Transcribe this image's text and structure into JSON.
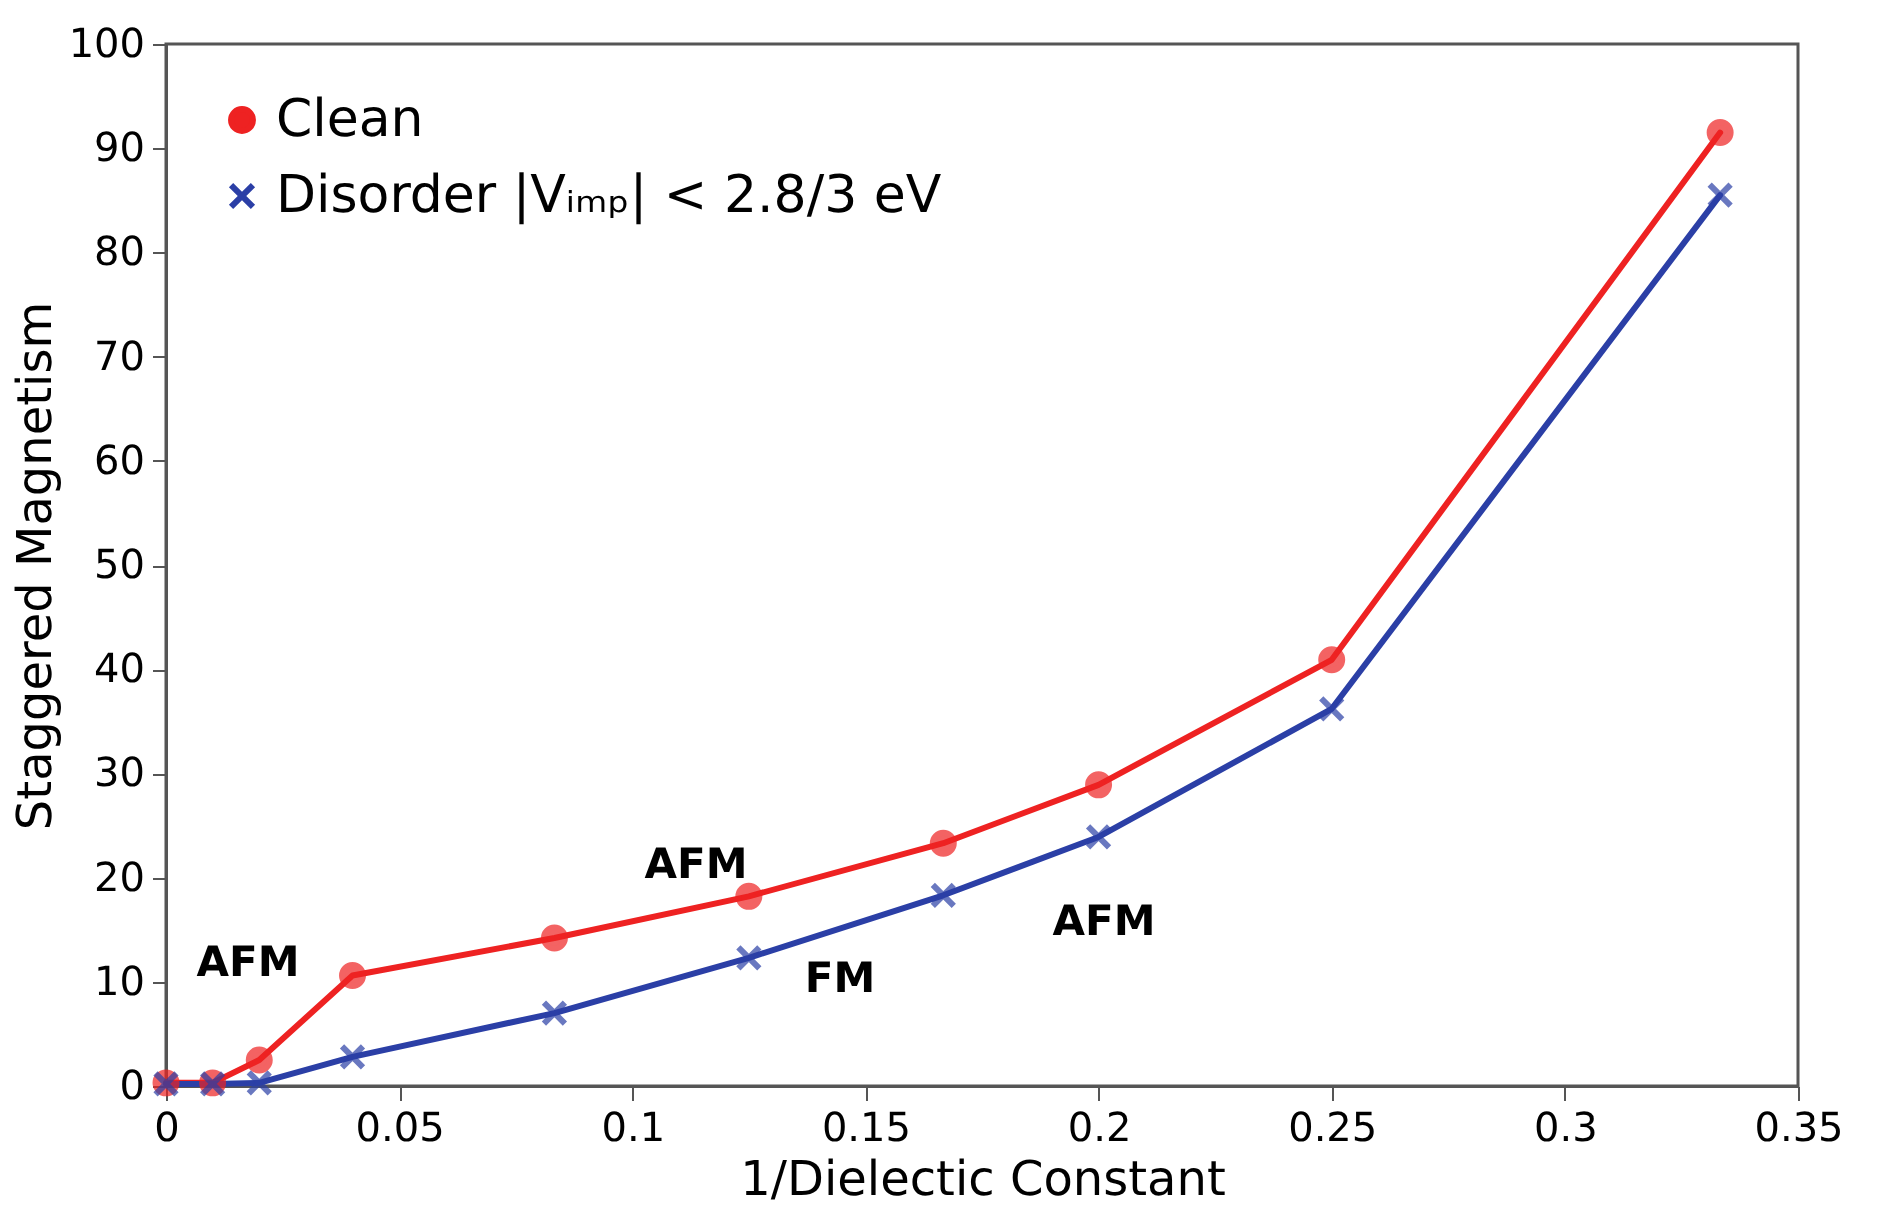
{
  "chart_data": {
    "type": "line",
    "xlabel": "1/Dielectic Constant",
    "ylabel": "Staggered Magnetism",
    "x": [
      0,
      0.01,
      0.02,
      0.04,
      0.0833,
      0.125,
      0.1667,
      0.2,
      0.25,
      0.3333
    ],
    "series": [
      {
        "name": "Clean",
        "color": "#ee2222",
        "marker": "circle",
        "values": [
          0.3,
          0.3,
          2.5,
          10.6,
          14.2,
          18.2,
          23.3,
          28.9,
          40.9,
          91.5
        ]
      },
      {
        "name": "Disorder |Vᵢₘₚ| < 2.8/3 eV",
        "color": "#2b3fa6",
        "marker": "cross",
        "values": [
          0.2,
          0.2,
          0.3,
          2.8,
          7,
          12.3,
          18.3,
          23.9,
          36.2,
          85.5
        ]
      }
    ],
    "annotations": [
      "AFM",
      "AFM",
      "FM",
      "AFM"
    ],
    "xlim": [
      0,
      0.35
    ],
    "xticks": [
      0,
      0.05,
      0.1,
      0.15,
      0.2,
      0.25,
      0.3,
      0.35
    ],
    "ylim": [
      0,
      100
    ],
    "yticks": [
      0,
      10,
      20,
      30,
      40,
      50,
      60,
      70,
      80,
      90,
      100
    ],
    "grid": false,
    "legend": "top left",
    "line_style": "solid"
  }
}
